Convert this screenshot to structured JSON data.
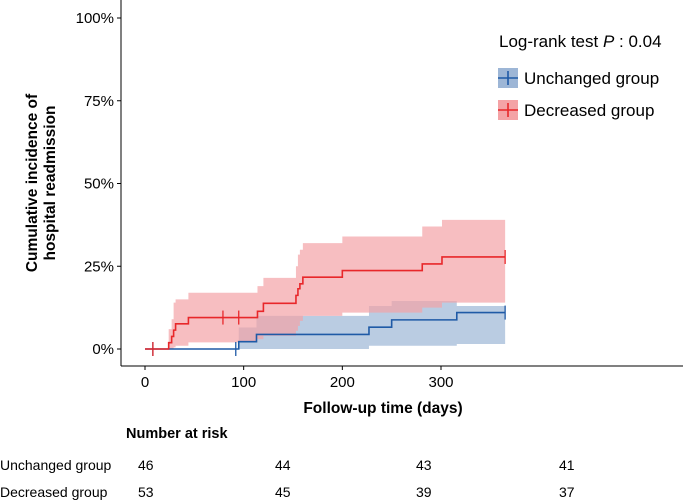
{
  "chart_data": {
    "type": "line",
    "subtype": "cumulative-incidence-step",
    "xlabel": "Follow-up time (days)",
    "ylabel_line1": "Cumulative incidence of",
    "ylabel_line2": "hospital readmission",
    "xlim": [
      -10,
      367
    ],
    "ylim": [
      0,
      1.02
    ],
    "x_ticks": [
      0,
      100,
      200,
      300
    ],
    "x_tick_labels": [
      "0",
      "100",
      "200",
      "300"
    ],
    "y_ticks": [
      0,
      0.25,
      0.5,
      0.75,
      1.0
    ],
    "y_tick_labels": [
      "0%",
      "25%",
      "50%",
      "75%",
      "100%"
    ],
    "annotation_prefix": "Log-rank test ",
    "annotation_p": "P",
    "annotation_suffix": " : 0.04",
    "series": [
      {
        "name": "Unchanged group",
        "color": "#1f5aa6",
        "fill": "#9db6d6",
        "steps": [
          [
            0,
            0
          ],
          [
            92,
            0
          ],
          [
            95,
            0.022
          ],
          [
            113,
            0.044
          ],
          [
            227,
            0.066
          ],
          [
            250,
            0.088
          ],
          [
            316,
            0.11
          ],
          [
            365,
            0.11
          ]
        ],
        "lower": [
          [
            0,
            0
          ],
          [
            92,
            0
          ],
          [
            95,
            0
          ],
          [
            113,
            0
          ],
          [
            227,
            0.01
          ],
          [
            250,
            0.01
          ],
          [
            316,
            0.015
          ],
          [
            365,
            0.015
          ]
        ],
        "upper": [
          [
            0,
            0
          ],
          [
            92,
            0
          ],
          [
            95,
            0.065
          ],
          [
            113,
            0.1
          ],
          [
            227,
            0.13
          ],
          [
            250,
            0.145
          ],
          [
            316,
            0.13
          ],
          [
            365,
            0.13
          ]
        ],
        "censor": [
          [
            8,
            0
          ],
          [
            92,
            0
          ],
          [
            365,
            0.11
          ]
        ]
      },
      {
        "name": "Decreased group",
        "color": "#e8272a",
        "fill": "#f4a3a6",
        "steps": [
          [
            0,
            0
          ],
          [
            22,
            0
          ],
          [
            24,
            0.019
          ],
          [
            27,
            0.038
          ],
          [
            29,
            0.057
          ],
          [
            31,
            0.076
          ],
          [
            44,
            0.095
          ],
          [
            114,
            0.114
          ],
          [
            120,
            0.138
          ],
          [
            153,
            0.162
          ],
          [
            155,
            0.182
          ],
          [
            157,
            0.197
          ],
          [
            160,
            0.217
          ],
          [
            200,
            0.237
          ],
          [
            281,
            0.257
          ],
          [
            301,
            0.278
          ],
          [
            365,
            0.278
          ]
        ],
        "lower": [
          [
            0,
            0
          ],
          [
            22,
            0
          ],
          [
            24,
            0
          ],
          [
            27,
            0
          ],
          [
            29,
            0.005
          ],
          [
            31,
            0.01
          ],
          [
            44,
            0.02
          ],
          [
            114,
            0.03
          ],
          [
            120,
            0.04
          ],
          [
            153,
            0.055
          ],
          [
            155,
            0.07
          ],
          [
            157,
            0.085
          ],
          [
            160,
            0.1
          ],
          [
            200,
            0.11
          ],
          [
            281,
            0.125
          ],
          [
            301,
            0.14
          ],
          [
            365,
            0.14
          ]
        ],
        "upper": [
          [
            0,
            0
          ],
          [
            22,
            0
          ],
          [
            24,
            0.06
          ],
          [
            27,
            0.09
          ],
          [
            29,
            0.14
          ],
          [
            31,
            0.15
          ],
          [
            44,
            0.17
          ],
          [
            114,
            0.19
          ],
          [
            120,
            0.215
          ],
          [
            153,
            0.25
          ],
          [
            155,
            0.285
          ],
          [
            157,
            0.3
          ],
          [
            160,
            0.32
          ],
          [
            200,
            0.34
          ],
          [
            281,
            0.37
          ],
          [
            301,
            0.39
          ],
          [
            365,
            0.39
          ]
        ],
        "censor": [
          [
            8,
            0
          ],
          [
            79,
            0.095
          ],
          [
            95,
            0.095
          ],
          [
            365,
            0.278
          ]
        ]
      }
    ]
  },
  "risk_table": {
    "title": "Number at risk",
    "rows": [
      {
        "label": "Unchanged group",
        "values": [
          "46",
          "44",
          "43",
          "41"
        ]
      },
      {
        "label": "Decreased group",
        "values": [
          "53",
          "45",
          "39",
          "37"
        ]
      }
    ]
  }
}
